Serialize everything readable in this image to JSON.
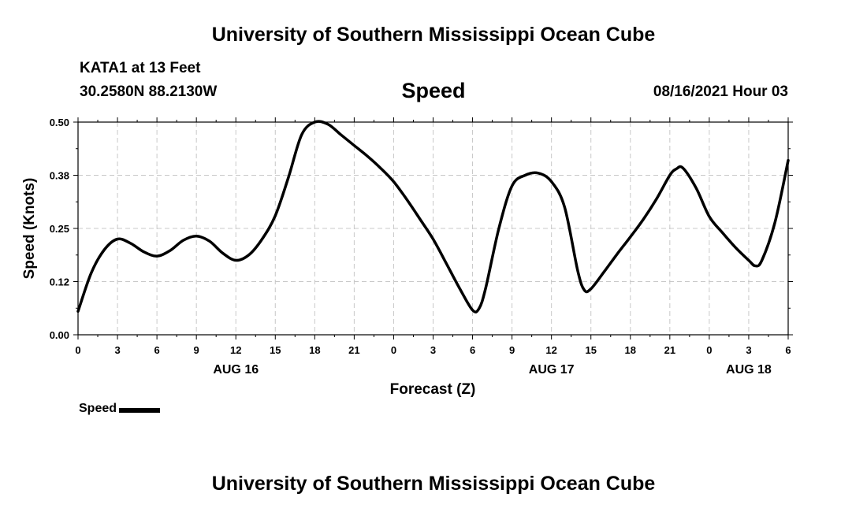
{
  "header": {
    "title_top": "University of Southern Mississippi Ocean Cube",
    "station": "KATA1 at 13 Feet",
    "coords": "30.2580N  88.2130W",
    "timestamp": "08/16/2021 Hour 03"
  },
  "footer": {
    "title_bottom": "University of Southern Mississippi Ocean Cube"
  },
  "chart_data": {
    "type": "line",
    "title": "Speed",
    "xlabel": "Forecast (Z)",
    "ylabel": "Speed (Knots)",
    "xlim": [
      0,
      54
    ],
    "ylim": [
      0,
      0.5
    ],
    "grid": true,
    "yticks": [
      "0.00",
      "0.12",
      "0.25",
      "0.38",
      "0.50"
    ],
    "xticks": [
      {
        "t": 0,
        "label": "0"
      },
      {
        "t": 3,
        "label": "3"
      },
      {
        "t": 6,
        "label": "6"
      },
      {
        "t": 9,
        "label": "9"
      },
      {
        "t": 12,
        "label": "12"
      },
      {
        "t": 15,
        "label": "15"
      },
      {
        "t": 18,
        "label": "18"
      },
      {
        "t": 21,
        "label": "21"
      },
      {
        "t": 24,
        "label": "0"
      },
      {
        "t": 27,
        "label": "3"
      },
      {
        "t": 30,
        "label": "6"
      },
      {
        "t": 33,
        "label": "9"
      },
      {
        "t": 36,
        "label": "12"
      },
      {
        "t": 39,
        "label": "15"
      },
      {
        "t": 42,
        "label": "18"
      },
      {
        "t": 45,
        "label": "21"
      },
      {
        "t": 48,
        "label": "0"
      },
      {
        "t": 51,
        "label": "3"
      },
      {
        "t": 54,
        "label": "6"
      }
    ],
    "date_labels": [
      {
        "t": 12,
        "label": "AUG 16"
      },
      {
        "t": 36,
        "label": "AUG 17"
      },
      {
        "t": 51,
        "label": "AUG 18"
      }
    ],
    "series": [
      {
        "name": "Speed",
        "color": "#000000",
        "x": [
          0,
          1,
          2,
          3,
          4,
          5,
          6,
          7,
          8,
          9,
          10,
          11,
          12,
          13,
          14,
          15,
          16,
          17,
          18,
          19,
          20,
          21,
          22,
          23,
          24,
          25,
          26,
          27,
          28,
          29,
          30,
          30.5,
          31,
          32,
          33,
          34,
          35,
          36,
          37,
          38,
          38.5,
          39,
          40,
          41,
          42,
          43,
          44,
          45,
          45.5,
          46,
          47,
          48,
          49,
          50,
          51,
          51.5,
          52,
          53,
          54
        ],
        "values": [
          0.055,
          0.145,
          0.2,
          0.225,
          0.215,
          0.195,
          0.185,
          0.198,
          0.222,
          0.232,
          0.22,
          0.192,
          0.175,
          0.188,
          0.225,
          0.28,
          0.37,
          0.47,
          0.5,
          0.495,
          0.47,
          0.445,
          0.42,
          0.392,
          0.36,
          0.318,
          0.272,
          0.225,
          0.168,
          0.11,
          0.058,
          0.062,
          0.11,
          0.25,
          0.35,
          0.375,
          0.38,
          0.36,
          0.3,
          0.15,
          0.105,
          0.108,
          0.148,
          0.19,
          0.23,
          0.272,
          0.32,
          0.375,
          0.39,
          0.392,
          0.345,
          0.278,
          0.24,
          0.205,
          0.175,
          0.162,
          0.175,
          0.265,
          0.41
        ]
      }
    ],
    "legend": {
      "label": "Speed",
      "placement": "bottom-left"
    }
  }
}
